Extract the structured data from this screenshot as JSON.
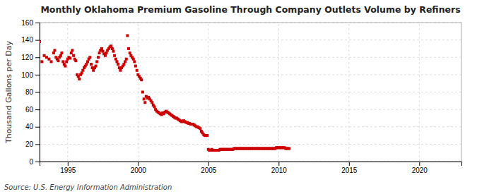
{
  "chart_data": {
    "type": "scatter",
    "title": "Monthly Oklahoma Premium Gasoline Through Company Outlets Volume by Refiners",
    "y_label": "Thousand Gallons per Day",
    "source": "Source: U.S. Energy Information Administration",
    "color": "#cc0000",
    "marker": "square",
    "grid": true,
    "xlim": [
      1993.0,
      2023.0
    ],
    "xticks": [
      1995,
      2000,
      2005,
      2010,
      2015,
      2020
    ],
    "ylim": [
      0,
      160
    ],
    "yticks": [
      0,
      20,
      40,
      60,
      80,
      100,
      120,
      140,
      160
    ],
    "x": [
      1993.0,
      1993.17,
      1993.33,
      1993.5,
      1993.67,
      1993.83,
      1994.0,
      1994.08,
      1994.17,
      1994.25,
      1994.33,
      1994.42,
      1994.5,
      1994.58,
      1994.67,
      1994.75,
      1994.83,
      1994.92,
      1995.0,
      1995.08,
      1995.17,
      1995.25,
      1995.33,
      1995.42,
      1995.5,
      1995.58,
      1995.67,
      1995.75,
      1995.83,
      1995.92,
      1996.0,
      1996.08,
      1996.17,
      1996.25,
      1996.33,
      1996.42,
      1996.5,
      1996.58,
      1996.67,
      1996.75,
      1996.83,
      1996.92,
      1997.0,
      1997.08,
      1997.17,
      1997.25,
      1997.33,
      1997.42,
      1997.5,
      1997.58,
      1997.67,
      1997.75,
      1997.83,
      1997.92,
      1998.0,
      1998.08,
      1998.17,
      1998.25,
      1998.33,
      1998.42,
      1998.5,
      1998.58,
      1998.67,
      1998.75,
      1998.83,
      1998.92,
      1999.0,
      1999.08,
      1999.17,
      1999.25,
      1999.33,
      1999.42,
      1999.5,
      1999.58,
      1999.67,
      1999.75,
      1999.83,
      1999.92,
      2000.0,
      2000.08,
      2000.17,
      2000.25,
      2000.33,
      2000.42,
      2000.5,
      2000.58,
      2000.67,
      2000.75,
      2000.83,
      2000.92,
      2001.0,
      2001.08,
      2001.17,
      2001.25,
      2001.33,
      2001.42,
      2001.5,
      2001.58,
      2001.67,
      2001.75,
      2001.83,
      2001.92,
      2002.0,
      2002.08,
      2002.17,
      2002.25,
      2002.33,
      2002.42,
      2002.5,
      2002.58,
      2002.67,
      2002.75,
      2002.83,
      2002.92,
      2003.0,
      2003.08,
      2003.17,
      2003.25,
      2003.33,
      2003.42,
      2003.5,
      2003.58,
      2003.67,
      2003.75,
      2003.83,
      2003.92,
      2004.0,
      2004.08,
      2004.17,
      2004.25,
      2004.33,
      2004.42,
      2004.5,
      2004.58,
      2004.67,
      2004.75,
      2004.83,
      2004.92,
      2005.0,
      2005.08,
      2005.17,
      2005.25,
      2005.33,
      2005.42,
      2005.5,
      2005.58,
      2005.67,
      2005.75,
      2005.83,
      2005.92,
      2006.0,
      2006.08,
      2006.17,
      2006.25,
      2006.33,
      2006.42,
      2006.5,
      2006.58,
      2006.67,
      2006.75,
      2006.83,
      2006.92,
      2007.0,
      2007.08,
      2007.17,
      2007.25,
      2007.33,
      2007.42,
      2007.5,
      2007.58,
      2007.67,
      2007.75,
      2007.83,
      2007.92,
      2008.0,
      2008.08,
      2008.17,
      2008.25,
      2008.33,
      2008.42,
      2008.5,
      2008.58,
      2008.67,
      2008.75,
      2008.83,
      2008.92,
      2009.0,
      2009.08,
      2009.17,
      2009.25,
      2009.33,
      2009.42,
      2009.5,
      2009.58,
      2009.67,
      2009.75,
      2009.83,
      2009.92,
      2010.0,
      2010.08,
      2010.17,
      2010.25,
      2010.33,
      2010.42,
      2010.5,
      2010.58,
      2010.67,
      2010.75
    ],
    "values": [
      138.0,
      115.0,
      122.0,
      120.0,
      118.0,
      115.0,
      125.0,
      128.0,
      120.0,
      118.0,
      116.0,
      120.0,
      122.0,
      125.0,
      115.0,
      112.0,
      110.0,
      115.0,
      118.0,
      120.0,
      119.0,
      125.0,
      128.0,
      122.0,
      118.0,
      116.0,
      100.0,
      98.0,
      95.0,
      100.0,
      102.0,
      105.0,
      108.0,
      110.0,
      112.0,
      115.0,
      118.0,
      120.0,
      112.0,
      108.0,
      105.0,
      108.0,
      110.0,
      115.0,
      120.0,
      125.0,
      128.0,
      130.0,
      127.0,
      124.0,
      122.0,
      125.0,
      128.0,
      130.0,
      132.0,
      133.0,
      130.0,
      127.0,
      122.0,
      118.0,
      115.0,
      112.0,
      108.0,
      105.0,
      108.0,
      110.0,
      112.0,
      115.0,
      118.0,
      145.0,
      130.0,
      125.0,
      122.0,
      120.0,
      118.0,
      115.0,
      110.0,
      105.0,
      100.0,
      98.0,
      96.0,
      94.0,
      80.0,
      72.0,
      68.0,
      75.0,
      73.0,
      74.0,
      72.0,
      70.0,
      68.0,
      65.0,
      63.0,
      60.0,
      58.0,
      57.0,
      56.0,
      55.0,
      54.0,
      56.0,
      55.0,
      57.0,
      58.0,
      57.0,
      56.0,
      55.0,
      54.0,
      53.0,
      52.0,
      51.0,
      50.0,
      50.0,
      49.0,
      48.0,
      47.0,
      46.0,
      46.0,
      47.0,
      46.0,
      45.0,
      45.0,
      44.0,
      44.0,
      43.0,
      43.0,
      43.0,
      42.0,
      41.0,
      40.0,
      40.0,
      39.0,
      38.0,
      35.0,
      33.0,
      31.0,
      30.0,
      30.0,
      30.0,
      14.0,
      13.0,
      13.0,
      14.0,
      13.0,
      13.0,
      13.0,
      13.0,
      13.0,
      13.0,
      14.0,
      14.0,
      14.0,
      14.0,
      14.0,
      14.0,
      14.0,
      14.0,
      14.0,
      14.0,
      14.0,
      14.0,
      15.0,
      15.0,
      15.0,
      15.0,
      15.0,
      15.0,
      15.0,
      15.0,
      15.0,
      15.0,
      15.0,
      15.0,
      15.0,
      15.0,
      15.0,
      15.0,
      15.0,
      15.0,
      15.0,
      15.0,
      15.0,
      15.0,
      15.0,
      15.0,
      15.0,
      15.0,
      15.0,
      15.0,
      15.0,
      15.0,
      15.0,
      15.0,
      15.0,
      15.0,
      15.0,
      15.0,
      16.0,
      16.0,
      16.0,
      16.0,
      16.0,
      16.0,
      16.0,
      16.0,
      15.0,
      15.0,
      15.0,
      15.0
    ]
  }
}
